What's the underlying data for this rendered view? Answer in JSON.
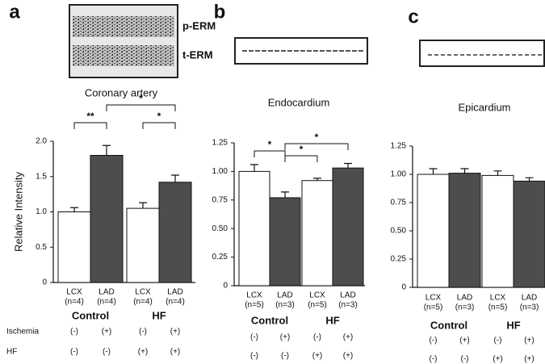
{
  "chart_data": [
    {
      "type": "bar",
      "panel": "a",
      "title": "Coronary artery",
      "y_label": "Relative Intensity",
      "blot_labels": [
        "p-ERM",
        "t-ERM"
      ],
      "categories": [
        "LCX",
        "LAD",
        "LCX",
        "LAD"
      ],
      "n_labels": [
        "(n=4)",
        "(n=4)",
        "(n=4)",
        "(n=4)"
      ],
      "groups": [
        "Control",
        "HF"
      ],
      "values": [
        1.0,
        1.8,
        1.05,
        1.42
      ],
      "errors": [
        0.06,
        0.14,
        0.08,
        0.1
      ],
      "colors": [
        "#ffffff",
        "#4d4d4d",
        "#ffffff",
        "#4d4d4d"
      ],
      "ylim": [
        0,
        2
      ],
      "yticks": [
        0,
        0.5,
        {
          "value": 1,
          "label": "1.0"
        },
        1.5,
        {
          "value": 2,
          "label": "2.0"
        }
      ],
      "significance": [
        "**",
        "*",
        "*"
      ],
      "rows": [
        {
          "label": "Ischemia",
          "values": [
            "(-)",
            "(+)",
            "(-)",
            "(+)"
          ]
        },
        {
          "label": "HF",
          "values": [
            "(-)",
            "(-)",
            "(+)",
            "(+)"
          ]
        }
      ]
    },
    {
      "type": "bar",
      "panel": "b",
      "title": "Endocardium",
      "categories": [
        "LCX",
        "LAD",
        "LCX",
        "LAD"
      ],
      "n_labels": [
        "(n=5)",
        "(n=3)",
        "(n=5)",
        "(n=3)"
      ],
      "groups": [
        "Control",
        "HF"
      ],
      "values": [
        1.0,
        0.77,
        0.92,
        1.03
      ],
      "errors": [
        0.06,
        0.05,
        0.02,
        0.04
      ],
      "colors": [
        "#ffffff",
        "#4d4d4d",
        "#ffffff",
        "#4d4d4d"
      ],
      "ylim": [
        0,
        1.25
      ],
      "yticks": [
        0,
        0.25,
        {
          "value": 0.5,
          "label": "0.50"
        },
        0.75,
        {
          "value": 1,
          "label": "1.00"
        },
        1.25
      ],
      "significance": [
        "*",
        "*",
        "*"
      ],
      "rows": [
        {
          "values": [
            "(-)",
            "(+)",
            "(-)",
            "(+)"
          ]
        },
        {
          "values": [
            "(-)",
            "(-)",
            "(+)",
            "(+)"
          ]
        }
      ]
    },
    {
      "type": "bar",
      "panel": "c",
      "title": "Epicardium",
      "categories": [
        "LCX",
        "LAD",
        "LCX",
        "LAD"
      ],
      "n_labels": [
        "(n=5)",
        "(n=3)",
        "(n=5)",
        "(n=3)"
      ],
      "groups": [
        "Control",
        "HF"
      ],
      "values": [
        1.0,
        1.01,
        0.99,
        0.94
      ],
      "errors": [
        0.05,
        0.04,
        0.04,
        0.03
      ],
      "colors": [
        "#ffffff",
        "#4d4d4d",
        "#ffffff",
        "#4d4d4d"
      ],
      "ylim": [
        0,
        1.25
      ],
      "yticks": [
        0,
        0.25,
        {
          "value": 0.5,
          "label": "0.50"
        },
        0.75,
        {
          "value": 1,
          "label": "1.00"
        },
        1.25
      ],
      "rows": [
        {
          "values": [
            "(-)",
            "(+)",
            "(-)",
            "(+)"
          ]
        },
        {
          "values": [
            "(-)",
            "(-)",
            "(+)",
            "(+)"
          ]
        }
      ]
    }
  ]
}
